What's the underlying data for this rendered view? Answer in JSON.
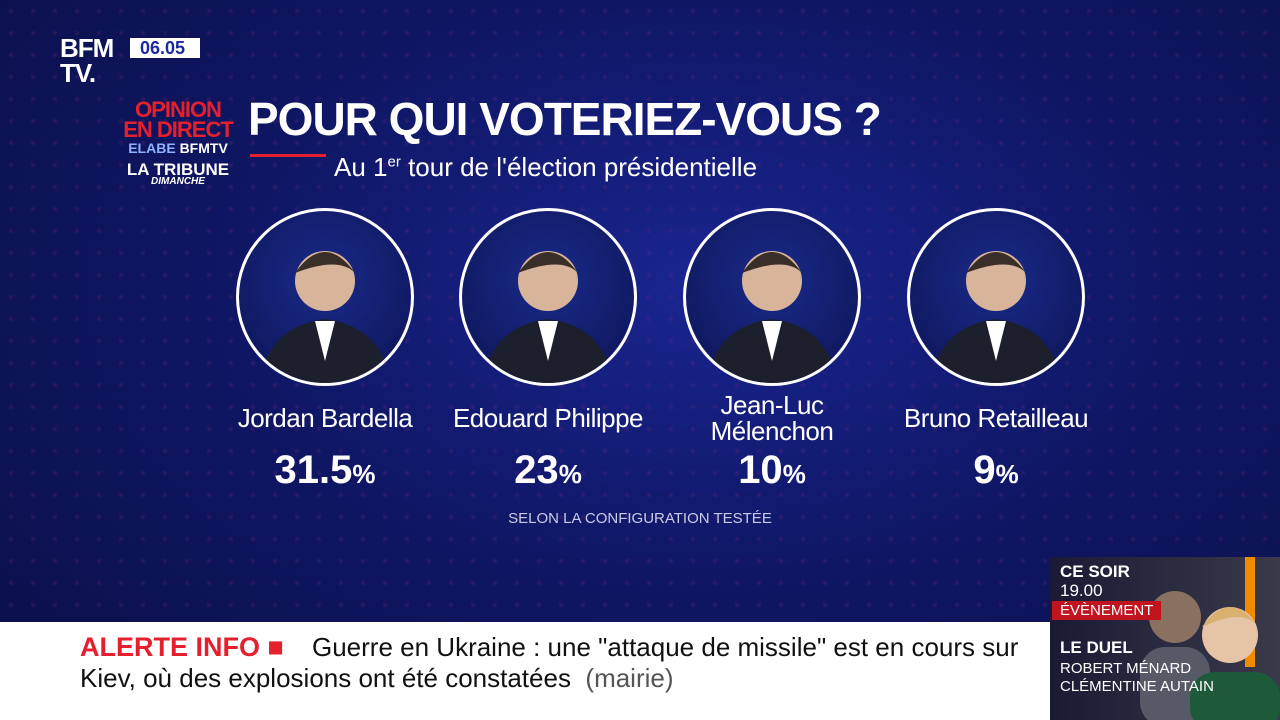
{
  "channel": {
    "logo_line1": "BFM",
    "logo_line2": "TV.",
    "time": "06.05"
  },
  "branding": {
    "opinion1": "OPINION",
    "opinion2": "EN DIRECT",
    "elabe": "ELABE",
    "bfmtv": "BFMTV",
    "tribune": "LA TRIBUNE",
    "dimanche": "DIMANCHE"
  },
  "title": "POUR QUI VOTERIEZ-VOUS ?",
  "subtitle": {
    "pre": "Au 1",
    "sup": "er",
    "post": " tour de l'élection présidentielle"
  },
  "candidates": [
    {
      "name": "Jordan Bardella",
      "value": "31.5",
      "unit": "%"
    },
    {
      "name": "Edouard Philippe",
      "value": "23",
      "unit": "%"
    },
    {
      "name": "Jean-Luc Mélenchon",
      "value": "10",
      "unit": "%"
    },
    {
      "name": "Bruno Retailleau",
      "value": "9",
      "unit": "%"
    }
  ],
  "note": "SELON LA CONFIGURATION TESTÉE",
  "ticker": {
    "label": "ALERTE INFO ■",
    "text": "Guerre en Ukraine : une \"attaque de missile\" est en cours sur Kiev, où des explosions ont été constatées",
    "source": "(mairie)"
  },
  "promo": {
    "ce_soir": "CE SOIR",
    "hour": "19.00",
    "tag": "ÉVÈNEMENT",
    "show": "LE DUEL",
    "guest1": "ROBERT MÉNARD",
    "guest2": "CLÉMENTINE AUTAIN"
  },
  "colors": {
    "accent_red": "#e5202e",
    "navy": "#0f1766",
    "orange": "#f08a00"
  }
}
